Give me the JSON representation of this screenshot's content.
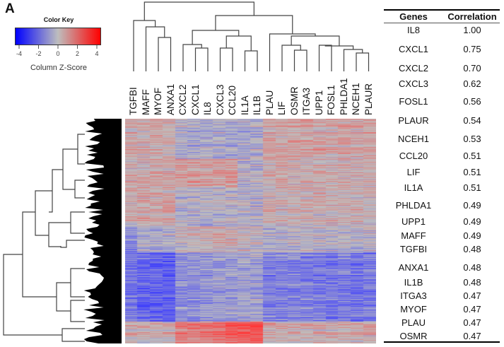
{
  "panel_label": "A",
  "chart_data": {
    "type": "heatmap",
    "color_key": {
      "title": "Color Key",
      "xlabel": "Column Z-Score",
      "ticks": [
        "-4",
        "-2",
        "0",
        "2",
        "4"
      ],
      "range": [
        -4,
        4
      ],
      "colors": {
        "low": "#0000ff",
        "mid": "#bebebe",
        "high": "#ff0000"
      }
    },
    "columns": [
      "TGFBI",
      "MAFF",
      "MYOF",
      "ANXA1",
      "CXCL2",
      "CXCL1",
      "IL8",
      "CXCL3",
      "CCL20",
      "IL1A",
      "IL1B",
      "PLAU",
      "LIF",
      "OSMR",
      "ITGA3",
      "UPP1",
      "FOSL1",
      "PHLDA1",
      "NCEH1",
      "PLAUR"
    ],
    "row_clusters": [
      {
        "rows": 57,
        "z": [
          0.8,
          0.6,
          0.8,
          0.7,
          -0.4,
          -0.7,
          -0.6,
          -0.5,
          -0.6,
          -0.6,
          -0.4,
          0.9,
          0.8,
          0.9,
          1.0,
          0.9,
          0.9,
          0.9,
          0.8,
          0.9
        ]
      },
      {
        "rows": 40,
        "z": [
          0.7,
          0.7,
          0.8,
          0.8,
          1.2,
          1.1,
          1.0,
          1.1,
          1.3,
          -0.3,
          -0.2,
          0.6,
          0.9,
          0.6,
          0.5,
          0.6,
          0.6,
          0.6,
          0.7,
          0.6
        ]
      },
      {
        "rows": 55,
        "z": [
          0.3,
          0.6,
          0.6,
          0.6,
          -0.6,
          -0.5,
          -0.7,
          -0.6,
          -0.4,
          -0.5,
          -0.5,
          0.2,
          0.4,
          0.3,
          0.3,
          0.3,
          0.3,
          0.4,
          0.3,
          0.3
        ]
      },
      {
        "rows": 37,
        "z": [
          -1.5,
          -0.4,
          -0.6,
          -0.6,
          0.1,
          0.3,
          0.4,
          0.5,
          0.4,
          0.1,
          0.0,
          -0.5,
          -0.2,
          -0.3,
          -0.2,
          -0.1,
          -0.2,
          -0.2,
          -0.3,
          -0.2
        ]
      },
      {
        "rows": 98,
        "z": [
          -2.2,
          -2.8,
          -2.8,
          -3.0,
          -1.5,
          -1.4,
          -1.3,
          -1.1,
          -1.0,
          -0.8,
          -0.9,
          -1.8,
          -1.8,
          -1.9,
          -2.0,
          -2.1,
          -2.2,
          -2.0,
          -2.2,
          -2.0
        ]
      },
      {
        "rows": 31,
        "z": [
          0.5,
          0.6,
          0.5,
          0.5,
          2.2,
          2.0,
          2.2,
          2.6,
          2.9,
          3.1,
          3.2,
          0.6,
          0.7,
          0.6,
          0.5,
          0.6,
          0.5,
          0.5,
          0.6,
          0.6
        ]
      }
    ]
  },
  "table": {
    "headers": {
      "genes": "Genes",
      "correlation": "Correlation"
    },
    "rows": [
      {
        "gene": "IL8",
        "corr": "1.00"
      },
      {
        "gene": "CXCL1",
        "corr": "0.75"
      },
      {
        "gene": "CXCL2",
        "corr": "0.70"
      },
      {
        "gene": "CXCL3",
        "corr": "0.62"
      },
      {
        "gene": "FOSL1",
        "corr": "0.56"
      },
      {
        "gene": "PLAUR",
        "corr": "0.54"
      },
      {
        "gene": "NCEH1",
        "corr": "0.53"
      },
      {
        "gene": "CCL20",
        "corr": "0.51"
      },
      {
        "gene": "LIF",
        "corr": "0.51"
      },
      {
        "gene": "IL1A",
        "corr": "0.51"
      },
      {
        "gene": "PHLDA1",
        "corr": "0.49"
      },
      {
        "gene": "UPP1",
        "corr": "0.49"
      },
      {
        "gene": "MAFF",
        "corr": "0.49"
      },
      {
        "gene": "TGFBI",
        "corr": "0.48"
      },
      {
        "gene": "ANXA1",
        "corr": "0.48"
      },
      {
        "gene": "IL1B",
        "corr": "0.48"
      },
      {
        "gene": "ITGA3",
        "corr": "0.47"
      },
      {
        "gene": "MYOF",
        "corr": "0.47"
      },
      {
        "gene": "PLAU",
        "corr": "0.47"
      },
      {
        "gene": "OSMR",
        "corr": "0.47"
      }
    ]
  }
}
